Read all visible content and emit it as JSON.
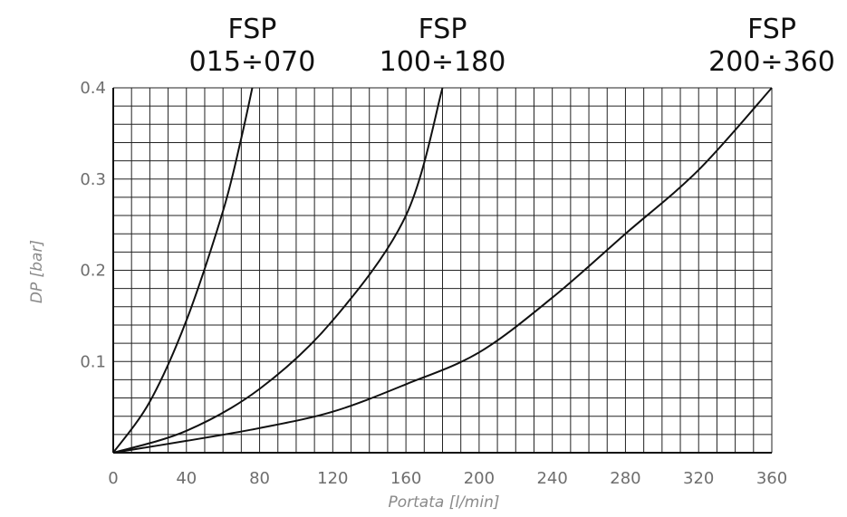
{
  "chart_data": {
    "type": "line",
    "title": "",
    "xlabel": "Portata [l/min]",
    "ylabel": "DP [bar]",
    "xlim": [
      0,
      360
    ],
    "ylim": [
      0,
      0.4
    ],
    "x_ticks": [
      "0",
      "40",
      "80",
      "120",
      "160",
      "200",
      "240",
      "280",
      "320",
      "360"
    ],
    "y_ticks": [
      "0.1",
      "0.2",
      "0.3",
      "0.4"
    ],
    "grid": true,
    "x_minor_step": 10,
    "y_minor_step": 0.02,
    "series": [
      {
        "name": "FSP",
        "range": "015÷070",
        "x": [
          0,
          20,
          40,
          60,
          70,
          76
        ],
        "y": [
          0,
          0.056,
          0.145,
          0.265,
          0.345,
          0.4
        ]
      },
      {
        "name": "FSP",
        "range": "100÷180",
        "x": [
          0,
          40,
          80,
          120,
          160,
          180
        ],
        "y": [
          0,
          0.024,
          0.07,
          0.145,
          0.26,
          0.4
        ]
      },
      {
        "name": "FSP",
        "range": "200÷360",
        "x": [
          0,
          40,
          80,
          120,
          160,
          200,
          240,
          280,
          320,
          360
        ],
        "y": [
          0,
          0.013,
          0.027,
          0.045,
          0.075,
          0.11,
          0.17,
          0.24,
          0.31,
          0.4
        ]
      }
    ]
  }
}
